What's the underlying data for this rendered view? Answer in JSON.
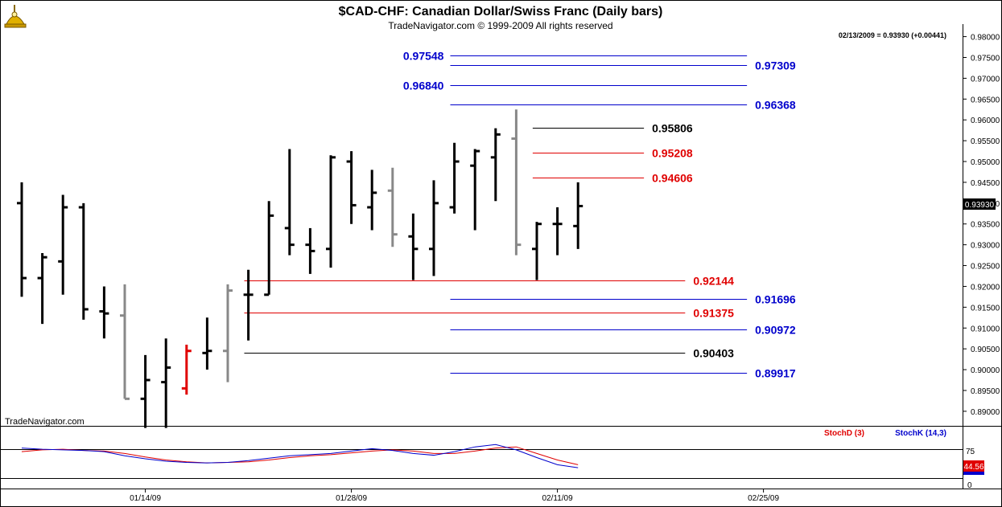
{
  "header": {
    "title": "$CAD-CHF:  Canadian Dollar/Swiss Franc  (Daily bars)",
    "subtitle": "TradeNavigator.com © 1999-2009 All rights reserved",
    "quote": "02/13/2009 = 0.93930 (+0.00441)",
    "watermark": "TradeNavigator.com",
    "logo_icon": "sextant-icon"
  },
  "colors": {
    "up_bar": "#000000",
    "down_bar": "#888888",
    "highlight_bar": "#e00000",
    "red_level": "#e00000",
    "blue_level": "#0000cc",
    "black_level": "#000000",
    "stoch_d": "#e00000",
    "stoch_k": "#0000cc"
  },
  "chart_data": {
    "type": "ohlc",
    "price_axis": {
      "ylim": [
        0.8865,
        0.9805
      ],
      "ticks": [
        "0.98000",
        "0.97500",
        "0.97000",
        "0.96500",
        "0.96000",
        "0.95500",
        "0.95000",
        "0.94500",
        "0.94000",
        "0.93500",
        "0.93000",
        "0.92500",
        "0.92000",
        "0.91500",
        "0.91000",
        "0.90500",
        "0.90000",
        "0.89500",
        "0.89000"
      ],
      "last_price_label": "0.93930"
    },
    "x_axis": {
      "date_labels": [
        {
          "label": "01/14/09",
          "index": 6
        },
        {
          "label": "01/28/09",
          "index": 16
        },
        {
          "label": "02/11/09",
          "index": 26
        },
        {
          "label": "02/25/09",
          "index": 36
        }
      ],
      "bar_count_visible": 40
    },
    "bars": [
      {
        "o": 0.94,
        "h": 0.945,
        "l": 0.9175,
        "c": 0.922,
        "color": "up"
      },
      {
        "o": 0.922,
        "h": 0.928,
        "l": 0.911,
        "c": 0.927,
        "color": "up"
      },
      {
        "o": 0.926,
        "h": 0.942,
        "l": 0.918,
        "c": 0.939,
        "color": "up"
      },
      {
        "o": 0.939,
        "h": 0.94,
        "l": 0.912,
        "c": 0.9145,
        "color": "up"
      },
      {
        "o": 0.914,
        "h": 0.92,
        "l": 0.9075,
        "c": 0.9135,
        "color": "up"
      },
      {
        "o": 0.913,
        "h": 0.9205,
        "l": 0.893,
        "c": 0.893,
        "color": "down"
      },
      {
        "o": 0.893,
        "h": 0.9035,
        "l": 0.886,
        "c": 0.8975,
        "color": "up"
      },
      {
        "o": 0.897,
        "h": 0.9075,
        "l": 0.886,
        "c": 0.9005,
        "color": "up"
      },
      {
        "o": 0.8955,
        "h": 0.906,
        "l": 0.894,
        "c": 0.9045,
        "color": "highlight"
      },
      {
        "o": 0.904,
        "h": 0.9125,
        "l": 0.9,
        "c": 0.9045,
        "color": "up"
      },
      {
        "o": 0.9045,
        "h": 0.9205,
        "l": 0.897,
        "c": 0.919,
        "color": "down"
      },
      {
        "o": 0.918,
        "h": 0.924,
        "l": 0.907,
        "c": 0.918,
        "color": "up"
      },
      {
        "o": 0.918,
        "h": 0.9405,
        "l": 0.918,
        "c": 0.937,
        "color": "up"
      },
      {
        "o": 0.934,
        "h": 0.953,
        "l": 0.9275,
        "c": 0.93,
        "color": "up"
      },
      {
        "o": 0.93,
        "h": 0.934,
        "l": 0.923,
        "c": 0.9285,
        "color": "up"
      },
      {
        "o": 0.929,
        "h": 0.9515,
        "l": 0.9245,
        "c": 0.951,
        "color": "up"
      },
      {
        "o": 0.95,
        "h": 0.9525,
        "l": 0.935,
        "c": 0.9395,
        "color": "up"
      },
      {
        "o": 0.939,
        "h": 0.948,
        "l": 0.9335,
        "c": 0.9425,
        "color": "up"
      },
      {
        "o": 0.943,
        "h": 0.9485,
        "l": 0.9295,
        "c": 0.9325,
        "color": "down"
      },
      {
        "o": 0.932,
        "h": 0.9375,
        "l": 0.9215,
        "c": 0.929,
        "color": "up"
      },
      {
        "o": 0.929,
        "h": 0.9455,
        "l": 0.9225,
        "c": 0.94,
        "color": "up"
      },
      {
        "o": 0.939,
        "h": 0.9545,
        "l": 0.9375,
        "c": 0.95,
        "color": "up"
      },
      {
        "o": 0.949,
        "h": 0.953,
        "l": 0.9335,
        "c": 0.9525,
        "color": "up"
      },
      {
        "o": 0.951,
        "h": 0.958,
        "l": 0.9405,
        "c": 0.9565,
        "color": "up"
      },
      {
        "o": 0.9555,
        "h": 0.9625,
        "l": 0.9275,
        "c": 0.93,
        "color": "down"
      },
      {
        "o": 0.929,
        "h": 0.9355,
        "l": 0.9215,
        "c": 0.935,
        "color": "up"
      },
      {
        "o": 0.935,
        "h": 0.939,
        "l": 0.9275,
        "c": 0.935,
        "color": "up"
      },
      {
        "o": 0.9345,
        "h": 0.945,
        "l": 0.929,
        "c": 0.9393,
        "color": "up"
      }
    ],
    "levels": [
      {
        "value": 0.97548,
        "label": "0.97548",
        "color": "blue",
        "x_from_bar": 20.8,
        "x_to_bar": 35.2,
        "label_side": "left"
      },
      {
        "value": 0.97309,
        "label": "0.97309",
        "color": "blue",
        "x_from_bar": 20.8,
        "x_to_bar": 35.2,
        "label_side": "right"
      },
      {
        "value": 0.9684,
        "label": "0.96840",
        "color": "blue",
        "x_from_bar": 20.8,
        "x_to_bar": 35.2,
        "label_side": "left"
      },
      {
        "value": 0.96368,
        "label": "0.96368",
        "color": "blue",
        "x_from_bar": 20.8,
        "x_to_bar": 35.2,
        "label_side": "right"
      },
      {
        "value": 0.95806,
        "label": "0.95806",
        "color": "black",
        "x_from_bar": 24.8,
        "x_to_bar": 30.2,
        "label_side": "right"
      },
      {
        "value": 0.95208,
        "label": "0.95208",
        "color": "red",
        "x_from_bar": 24.8,
        "x_to_bar": 30.2,
        "label_side": "right"
      },
      {
        "value": 0.94606,
        "label": "0.94606",
        "color": "red",
        "x_from_bar": 24.8,
        "x_to_bar": 30.2,
        "label_side": "right"
      },
      {
        "value": 0.92144,
        "label": "0.92144",
        "color": "red",
        "x_from_bar": 10.8,
        "x_to_bar": 32.2,
        "label_side": "right"
      },
      {
        "value": 0.91696,
        "label": "0.91696",
        "color": "blue",
        "x_from_bar": 20.8,
        "x_to_bar": 35.2,
        "label_side": "right"
      },
      {
        "value": 0.91375,
        "label": "0.91375",
        "color": "red",
        "x_from_bar": 10.8,
        "x_to_bar": 32.2,
        "label_side": "right"
      },
      {
        "value": 0.90972,
        "label": "0.90972",
        "color": "blue",
        "x_from_bar": 20.8,
        "x_to_bar": 35.2,
        "label_side": "right"
      },
      {
        "value": 0.90403,
        "label": "0.90403",
        "color": "black",
        "x_from_bar": 10.8,
        "x_to_bar": 32.2,
        "label_side": "right"
      },
      {
        "value": 0.89917,
        "label": "0.89917",
        "color": "blue",
        "x_from_bar": 20.8,
        "x_to_bar": 35.2,
        "label_side": "right"
      }
    ],
    "stochastic": {
      "legend_d": "StochD (3)",
      "legend_k": "StochK (14,3)",
      "ylim": [
        0,
        100
      ],
      "ticks": [
        "75",
        "0"
      ],
      "last_label": "44.56",
      "stoch_k": [
        68,
        66,
        65,
        64,
        62,
        55,
        50,
        46,
        44,
        43,
        44,
        47,
        51,
        55,
        57,
        59,
        63,
        67,
        64,
        59,
        56,
        62,
        70,
        74,
        65,
        52,
        40,
        35
      ],
      "stoch_d": [
        62,
        65,
        66,
        64,
        63,
        59,
        53,
        48,
        45,
        43,
        44,
        45,
        48,
        52,
        55,
        57,
        60,
        63,
        65,
        63,
        59,
        59,
        63,
        68,
        70,
        59,
        48,
        40
      ]
    }
  }
}
